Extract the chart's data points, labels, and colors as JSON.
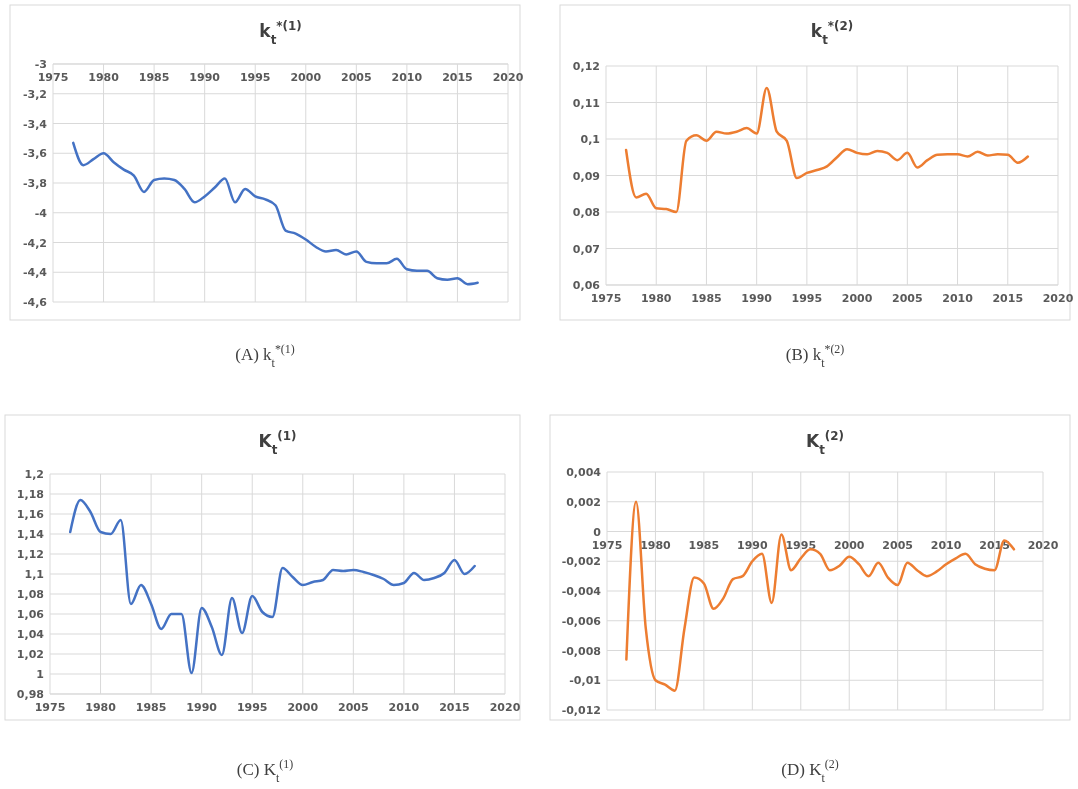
{
  "chart_data": [
    {
      "type": "line",
      "title": "k$_{t}$$^{*(1)}$",
      "annotations": [
        "(A) k$_{t}$$^{*(1)}$"
      ],
      "x": [
        1977,
        1978,
        1979,
        1980,
        1981,
        1982,
        1983,
        1984,
        1985,
        1986,
        1987,
        1988,
        1989,
        1990,
        1991,
        1992,
        1993,
        1994,
        1995,
        1996,
        1997,
        1998,
        1999,
        2000,
        2001,
        2002,
        2003,
        2004,
        2005,
        2006,
        2007,
        2008,
        2009,
        2010,
        2011,
        2012,
        2013,
        2014,
        2015,
        2016,
        2017
      ],
      "series": [
        {
          "color": "#4472c4",
          "values": [
            -3.53,
            -3.68,
            -3.64,
            -3.6,
            -3.66,
            -3.71,
            -3.75,
            -3.86,
            -3.78,
            -3.77,
            -3.78,
            -3.84,
            -3.93,
            -3.89,
            -3.83,
            -3.77,
            -3.93,
            -3.84,
            -3.89,
            -3.91,
            -3.95,
            -4.12,
            -4.14,
            -4.18,
            -4.23,
            -4.26,
            -4.25,
            -4.28,
            -4.26,
            -4.33,
            -4.34,
            -4.34,
            -4.31,
            -4.38,
            -4.39,
            -4.39,
            -4.44,
            -4.45,
            -4.44,
            -4.48,
            -4.47
          ]
        }
      ],
      "xlim": [
        1975,
        2020
      ],
      "xticks": [
        1975,
        1980,
        1985,
        1990,
        1995,
        2000,
        2005,
        2010,
        2015,
        2020
      ],
      "ylim": [
        -4.6,
        -3
      ],
      "yticks": [
        {
          "value": -4.6,
          "label": "-4,6"
        },
        {
          "value": -4.4,
          "label": "-4,4"
        },
        {
          "value": -4.2,
          "label": "-4,2"
        },
        {
          "value": -4,
          "label": "-4"
        },
        {
          "value": -3.8,
          "label": "-3,8"
        },
        {
          "value": -3.6,
          "label": "-3,6"
        },
        {
          "value": -3.4,
          "label": "-3,4"
        },
        {
          "value": -3.2,
          "label": "-3,2"
        },
        {
          "value": -3,
          "label": "-3"
        }
      ],
      "grid": true,
      "marker": "none",
      "line_style": "solid"
    },
    {
      "type": "line",
      "title": "k$_{t}$$^{*(2)}$",
      "annotations": [
        "(B) k$_{t}$$^{*(2)}$"
      ],
      "x": [
        1977,
        1978,
        1979,
        1980,
        1981,
        1982,
        1983,
        1984,
        1985,
        1986,
        1987,
        1988,
        1989,
        1990,
        1991,
        1992,
        1993,
        1994,
        1995,
        1996,
        1997,
        1998,
        1999,
        2000,
        2001,
        2002,
        2003,
        2004,
        2005,
        2006,
        2007,
        2008,
        2009,
        2010,
        2011,
        2012,
        2013,
        2014,
        2015,
        2016,
        2017
      ],
      "series": [
        {
          "color": "#ed7d31",
          "values": [
            0.097,
            0.084,
            0.085,
            0.081,
            0.0808,
            0.08,
            0.0995,
            0.101,
            0.0995,
            0.102,
            0.1015,
            0.102,
            0.103,
            0.1015,
            0.114,
            0.102,
            0.0995,
            0.0893,
            0.0907,
            0.0915,
            0.0925,
            0.095,
            0.0972,
            0.0962,
            0.0958,
            0.0967,
            0.0962,
            0.0942,
            0.0962,
            0.0922,
            0.0942,
            0.0957,
            0.0958,
            0.0958,
            0.0952,
            0.0965,
            0.0955,
            0.0958,
            0.0957,
            0.0935,
            0.0952
          ]
        }
      ],
      "xlim": [
        1975,
        2020
      ],
      "xticks": [
        1975,
        1980,
        1985,
        1990,
        1995,
        2000,
        2005,
        2010,
        2015,
        2020
      ],
      "ylim": [
        0.06,
        0.12
      ],
      "yticks": [
        {
          "value": 0.06,
          "label": "0,06"
        },
        {
          "value": 0.07,
          "label": "0,07"
        },
        {
          "value": 0.08,
          "label": "0,08"
        },
        {
          "value": 0.09,
          "label": "0,09"
        },
        {
          "value": 0.1,
          "label": "0,1"
        },
        {
          "value": 0.11,
          "label": "0,11"
        },
        {
          "value": 0.12,
          "label": "0,12"
        }
      ],
      "grid": true,
      "marker": "none",
      "line_style": "solid"
    },
    {
      "type": "line",
      "title": "K$_{t}$$^{(1)}$",
      "annotations": [
        "(C) K$_{t}$$^{(1)}$"
      ],
      "x": [
        1977,
        1978,
        1979,
        1980,
        1981,
        1982,
        1983,
        1984,
        1985,
        1986,
        1987,
        1988,
        1989,
        1990,
        1991,
        1992,
        1993,
        1994,
        1995,
        1996,
        1997,
        1998,
        1999,
        2000,
        2001,
        2002,
        2003,
        2004,
        2005,
        2006,
        2007,
        2008,
        2009,
        2010,
        2011,
        2012,
        2013,
        2014,
        2015,
        2016,
        2017
      ],
      "series": [
        {
          "color": "#4472c4",
          "values": [
            1.142,
            1.174,
            1.162,
            1.142,
            1.14,
            1.154,
            1.07,
            1.089,
            1.07,
            1.045,
            1.06,
            1.06,
            1.001,
            1.066,
            1.047,
            1.019,
            1.076,
            1.041,
            1.078,
            1.062,
            1.057,
            1.106,
            1.097,
            1.089,
            1.092,
            1.094,
            1.104,
            1.103,
            1.104,
            1.102,
            1.099,
            1.095,
            1.089,
            1.091,
            1.101,
            1.094,
            1.096,
            1.101,
            1.114,
            1.1,
            1.108
          ]
        }
      ],
      "xlim": [
        1975,
        2020
      ],
      "xticks": [
        1975,
        1980,
        1985,
        1990,
        1995,
        2000,
        2005,
        2010,
        2015,
        2020
      ],
      "ylim": [
        0.98,
        1.2
      ],
      "yticks": [
        {
          "value": 0.98,
          "label": "0,98"
        },
        {
          "value": 1,
          "label": "1"
        },
        {
          "value": 1.02,
          "label": "1,02"
        },
        {
          "value": 1.04,
          "label": "1,04"
        },
        {
          "value": 1.06,
          "label": "1,06"
        },
        {
          "value": 1.08,
          "label": "1,08"
        },
        {
          "value": 1.1,
          "label": "1,1"
        },
        {
          "value": 1.12,
          "label": "1,12"
        },
        {
          "value": 1.14,
          "label": "1,14"
        },
        {
          "value": 1.16,
          "label": "1,16"
        },
        {
          "value": 1.18,
          "label": "1,18"
        },
        {
          "value": 1.2,
          "label": "1,2"
        }
      ],
      "grid": true,
      "marker": "none",
      "line_style": "solid"
    },
    {
      "type": "line",
      "title": "K$_{t}$$^{(2)}$",
      "annotations": [
        "(D) K$_{t}$$^{(2)}$"
      ],
      "x": [
        1977,
        1978,
        1979,
        1980,
        1981,
        1982,
        1983,
        1984,
        1985,
        1986,
        1987,
        1988,
        1989,
        1990,
        1991,
        1992,
        1993,
        1994,
        1995,
        1996,
        1997,
        1998,
        1999,
        2000,
        2001,
        2002,
        2003,
        2004,
        2005,
        2006,
        2007,
        2008,
        2009,
        2010,
        2011,
        2012,
        2013,
        2014,
        2015,
        2016,
        2017
      ],
      "series": [
        {
          "color": "#ed7d31",
          "values": [
            -0.0086,
            0.002,
            -0.0065,
            -0.01,
            -0.0103,
            -0.0107,
            -0.0065,
            -0.0031,
            -0.0035,
            -0.0052,
            -0.0045,
            -0.0032,
            -0.003,
            -0.002,
            -0.0015,
            -0.0048,
            -0.0002,
            -0.0026,
            -0.0018,
            -0.0012,
            -0.0015,
            -0.0026,
            -0.0023,
            -0.0017,
            -0.0022,
            -0.003,
            -0.0021,
            -0.0031,
            -0.0036,
            -0.0021,
            -0.0026,
            -0.003,
            -0.0027,
            -0.0022,
            -0.0018,
            -0.0015,
            -0.0022,
            -0.0025,
            -0.0026,
            -0.0006,
            -0.0012
          ]
        }
      ],
      "xlim": [
        1975,
        2020
      ],
      "xticks": [
        1975,
        1980,
        1985,
        1990,
        1995,
        2000,
        2005,
        2010,
        2015,
        2020
      ],
      "ylim": [
        -0.012,
        0.004
      ],
      "yticks": [
        {
          "value": -0.012,
          "label": "-0,012"
        },
        {
          "value": -0.01,
          "label": "-0,01"
        },
        {
          "value": -0.008,
          "label": "-0,008"
        },
        {
          "value": -0.006,
          "label": "-0,006"
        },
        {
          "value": -0.004,
          "label": "-0,004"
        },
        {
          "value": -0.002,
          "label": "-0,002"
        },
        {
          "value": 0,
          "label": "0"
        },
        {
          "value": 0.002,
          "label": "0,002"
        },
        {
          "value": 0.004,
          "label": "0,004"
        }
      ],
      "grid": true,
      "marker": "none",
      "line_style": "solid"
    }
  ]
}
